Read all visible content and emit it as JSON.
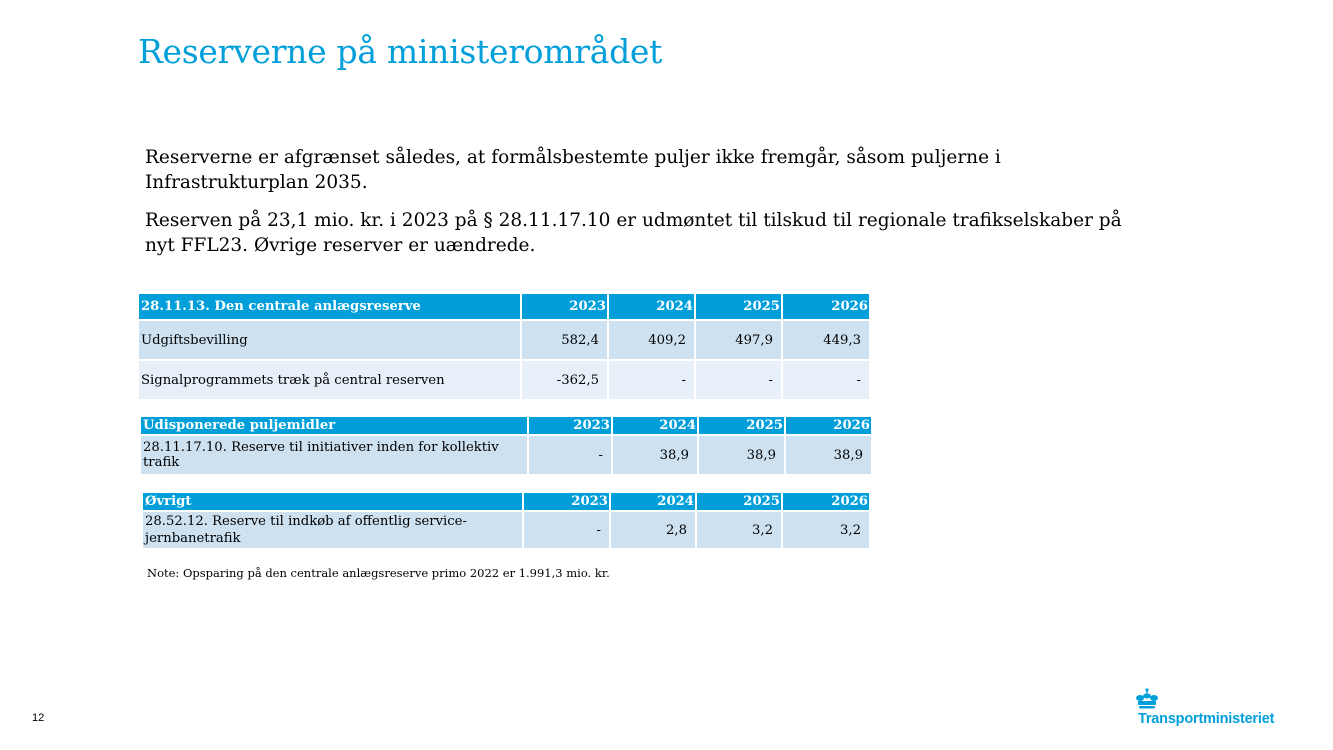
{
  "slide": {
    "title": "Reserverne på ministerområdet",
    "paragraph1": "Reserverne er afgrænset således, at formålsbestemte puljer ikke fremgår, såsom puljerne i Infrastrukturplan 2035.",
    "paragraph2": "Reserven på 23,1 mio. kr. i 2023 på § 28.11.17.10 er udmøntet til tilskud til regionale trafikselskaber på nyt FFL23. Øvrige reserver er uændrede.",
    "note": "Note: Opsparing på den centrale anlægsreserve primo 2022 er 1.991,3 mio. kr.",
    "page_number": "12",
    "logo_text": "Transportministeriet",
    "logo_icon": "crown-icon"
  },
  "tables": {
    "anlaeg": {
      "header": [
        "28.11.13. Den centrale anlægsreserve",
        "2023",
        "2024",
        "2025",
        "2026"
      ],
      "rows": [
        [
          "Udgiftsbevilling",
          "582,4",
          "409,2",
          "497,9",
          "449,3"
        ],
        [
          "Signalprogrammets træk på central reserven",
          "-362,5",
          "-",
          "-",
          "-"
        ]
      ]
    },
    "puljer": {
      "header": [
        "Udisponerede puljemidler",
        "2023",
        "2024",
        "2025",
        "2026"
      ],
      "rows": [
        [
          "28.11.17.10. Reserve til initiativer inden for kollektiv trafik",
          "-",
          "38,9",
          "38,9",
          "38,9"
        ]
      ]
    },
    "oevrigt": {
      "header": [
        "Øvrigt",
        "2023",
        "2024",
        "2025",
        "2026"
      ],
      "rows": [
        [
          "28.52.12. Reserve til indkøb af offentlig service-jernbanetrafik",
          "-",
          "2,8",
          "3,2",
          "3,2"
        ]
      ]
    }
  },
  "colors": {
    "accent": "#009fda",
    "row_dark": "#cde1f1",
    "row_light": "#e7f0f9"
  }
}
